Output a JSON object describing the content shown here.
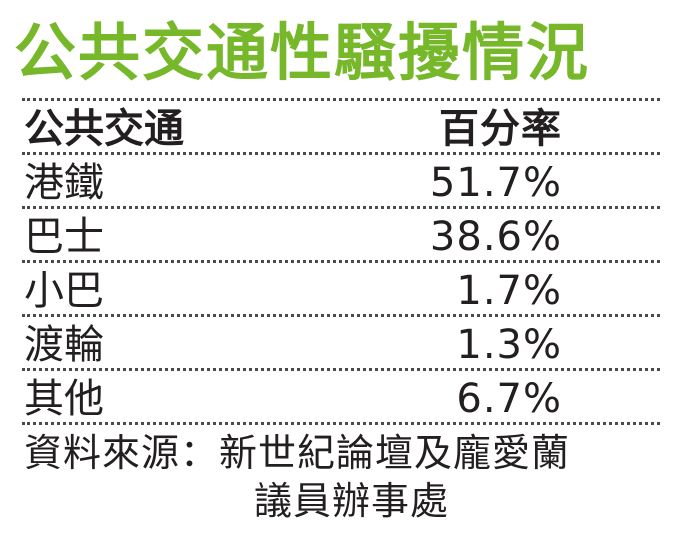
{
  "chart_data": {
    "type": "table",
    "title": "公共交通性騷擾情況",
    "columns": [
      "公共交通",
      "百分率"
    ],
    "rows": [
      {
        "label": "港鐵",
        "value": "51.7%"
      },
      {
        "label": "巴士",
        "value": "38.6%"
      },
      {
        "label": "小巴",
        "value": "1.7%"
      },
      {
        "label": "渡輪",
        "value": "1.3%"
      },
      {
        "label": "其他",
        "value": "6.7%"
      }
    ],
    "source_line1": "資料來源：新世紀論壇及龐愛蘭",
    "source_line2": "議員辦事處"
  }
}
